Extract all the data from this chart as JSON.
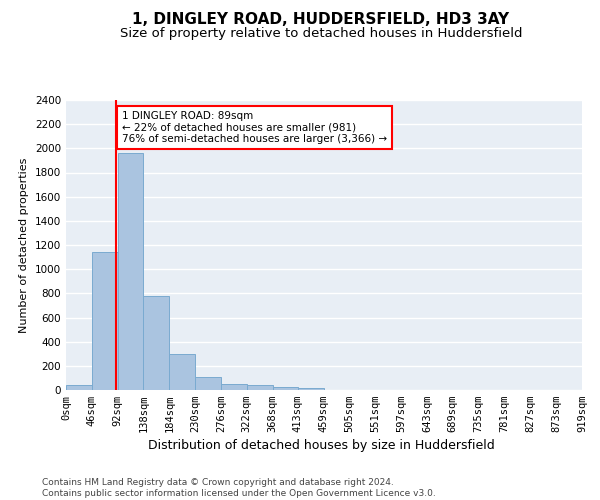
{
  "title": "1, DINGLEY ROAD, HUDDERSFIELD, HD3 3AY",
  "subtitle": "Size of property relative to detached houses in Huddersfield",
  "xlabel": "Distribution of detached houses by size in Huddersfield",
  "ylabel": "Number of detached properties",
  "bar_values": [
    40,
    1140,
    1960,
    780,
    300,
    105,
    48,
    38,
    25,
    18,
    0,
    0,
    0,
    0,
    0,
    0,
    0,
    0,
    0,
    0
  ],
  "bin_edges": [
    0,
    46,
    92,
    138,
    184,
    230,
    276,
    322,
    368,
    413,
    459,
    505,
    551,
    597,
    643,
    689,
    735,
    781,
    827,
    873,
    919
  ],
  "tick_labels": [
    "0sqm",
    "46sqm",
    "92sqm",
    "138sqm",
    "184sqm",
    "230sqm",
    "276sqm",
    "322sqm",
    "368sqm",
    "413sqm",
    "459sqm",
    "505sqm",
    "551sqm",
    "597sqm",
    "643sqm",
    "689sqm",
    "735sqm",
    "781sqm",
    "827sqm",
    "873sqm",
    "919sqm"
  ],
  "bar_color": "#aac4e0",
  "bar_edge_color": "#7aaad0",
  "red_line_x": 89,
  "annotation_text": "1 DINGLEY ROAD: 89sqm\n← 22% of detached houses are smaller (981)\n76% of semi-detached houses are larger (3,366) →",
  "annotation_box_color": "white",
  "annotation_box_edge": "red",
  "ylim": [
    0,
    2400
  ],
  "yticks": [
    0,
    200,
    400,
    600,
    800,
    1000,
    1200,
    1400,
    1600,
    1800,
    2000,
    2200,
    2400
  ],
  "background_color": "#e8eef5",
  "grid_color": "white",
  "footer_line1": "Contains HM Land Registry data © Crown copyright and database right 2024.",
  "footer_line2": "Contains public sector information licensed under the Open Government Licence v3.0.",
  "title_fontsize": 11,
  "subtitle_fontsize": 9.5,
  "xlabel_fontsize": 9,
  "ylabel_fontsize": 8,
  "tick_fontsize": 7.5,
  "footer_fontsize": 6.5
}
